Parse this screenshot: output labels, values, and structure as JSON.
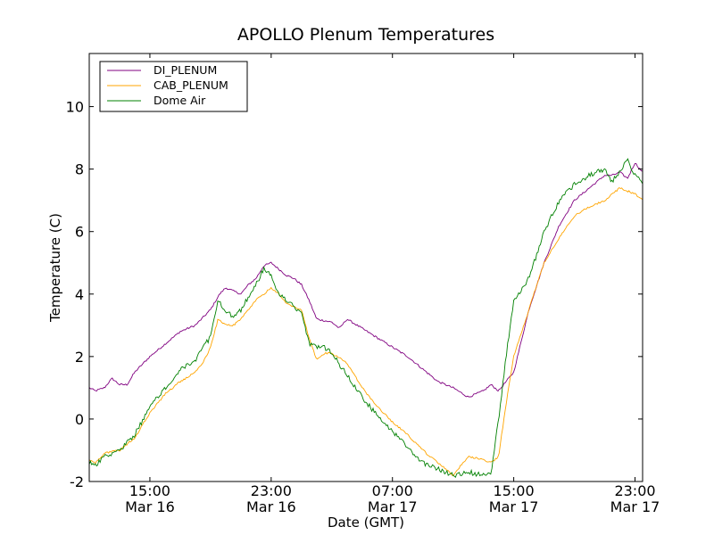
{
  "chart_data": {
    "type": "line",
    "title": "APOLLO Plenum Temperatures",
    "xlabel": "Date (GMT)",
    "ylabel": "Temperature (C)",
    "x_unit": "hours since Mar 16 11:00 GMT",
    "xlim": [
      0,
      36.5
    ],
    "ylim": [
      -2,
      11.7
    ],
    "y_ticks": [
      -2,
      0,
      2,
      4,
      6,
      8,
      10
    ],
    "x_ticks": [
      {
        "value": 4,
        "line1": "15:00",
        "line2": "Mar 16"
      },
      {
        "value": 12,
        "line1": "23:00",
        "line2": "Mar 16"
      },
      {
        "value": 20,
        "line1": "07:00",
        "line2": "Mar 17"
      },
      {
        "value": 28,
        "line1": "15:00",
        "line2": "Mar 17"
      },
      {
        "value": 36,
        "line1": "23:00",
        "line2": "Mar 17"
      }
    ],
    "grid": false,
    "legend_position": "top-left",
    "series": [
      {
        "name": "DI_PLENUM",
        "color": "#800080",
        "noise": 0.03,
        "x": [
          0,
          0.4,
          1,
          1.5,
          2,
          2.5,
          3,
          4,
          5,
          6,
          7,
          8,
          8.6,
          9,
          9.5,
          10,
          10.5,
          11,
          11.5,
          12,
          12.5,
          13,
          13.5,
          14,
          14.5,
          15,
          16,
          16.5,
          17,
          18,
          19,
          20,
          21,
          22,
          23,
          24,
          25,
          25.5,
          26,
          26.5,
          27,
          28,
          29,
          30,
          31,
          32,
          33,
          34,
          34.5,
          35,
          35.5,
          36,
          36.5
        ],
        "y": [
          1.0,
          0.9,
          1.0,
          1.3,
          1.1,
          1.1,
          1.5,
          2.0,
          2.4,
          2.8,
          3.0,
          3.5,
          4.0,
          4.2,
          4.1,
          4.0,
          4.3,
          4.5,
          4.9,
          5.0,
          4.8,
          4.6,
          4.5,
          4.3,
          3.8,
          3.2,
          3.1,
          2.9,
          3.2,
          2.9,
          2.6,
          2.3,
          2.0,
          1.6,
          1.2,
          1.0,
          0.7,
          0.8,
          0.9,
          1.1,
          0.9,
          1.5,
          3.5,
          5.0,
          6.2,
          7.0,
          7.4,
          7.8,
          7.8,
          7.9,
          7.7,
          8.2,
          7.9
        ]
      },
      {
        "name": "CAB_PLENUM",
        "color": "#FFA500",
        "noise": 0.03,
        "x": [
          0,
          0.4,
          1,
          2,
          3,
          4,
          5,
          6,
          7,
          7.5,
          8,
          8.5,
          9,
          9.5,
          10,
          11,
          12,
          12.5,
          13,
          13.5,
          14,
          14.5,
          15,
          15.5,
          16,
          17,
          18,
          19,
          20,
          21,
          22,
          23,
          23.5,
          24,
          25,
          26,
          26.5,
          27,
          27.5,
          28,
          29,
          30,
          31,
          32,
          33,
          33.5,
          34,
          34.5,
          35,
          35.5,
          36,
          36.5
        ],
        "y": [
          -1.3,
          -1.4,
          -1.1,
          -1.0,
          -0.6,
          0.2,
          0.8,
          1.2,
          1.5,
          1.8,
          2.3,
          3.2,
          3.0,
          3.0,
          3.2,
          3.8,
          4.2,
          4.0,
          3.7,
          3.6,
          3.5,
          2.6,
          1.9,
          2.1,
          2.1,
          1.8,
          1.0,
          0.4,
          -0.1,
          -0.5,
          -1.0,
          -1.4,
          -1.6,
          -1.8,
          -1.2,
          -1.3,
          -1.4,
          -1.2,
          0.5,
          2.0,
          3.5,
          5.0,
          5.8,
          6.5,
          6.8,
          6.9,
          7.0,
          7.2,
          7.4,
          7.3,
          7.2,
          7.0
        ]
      },
      {
        "name": "Dome Air",
        "color": "#008000",
        "noise": 0.08,
        "x": [
          0,
          0.4,
          1,
          2,
          3,
          4,
          5,
          6,
          7,
          7.5,
          8,
          8.5,
          9,
          9.5,
          10,
          11,
          11.5,
          12,
          12.5,
          13,
          13.5,
          14,
          14.5,
          15,
          15.5,
          16,
          17,
          18,
          19,
          20,
          21,
          22,
          23,
          23.5,
          24,
          25,
          26,
          26.5,
          27,
          27.5,
          28,
          29,
          30,
          31,
          32,
          33,
          34,
          34.5,
          35,
          35.5,
          36,
          36.5
        ],
        "y": [
          -1.4,
          -1.5,
          -1.2,
          -1.0,
          -0.5,
          0.4,
          1.0,
          1.6,
          1.9,
          2.3,
          2.6,
          3.8,
          3.4,
          3.3,
          3.5,
          4.3,
          4.8,
          4.6,
          4.0,
          3.8,
          3.6,
          3.4,
          2.4,
          2.3,
          2.3,
          2.1,
          1.4,
          0.7,
          0.1,
          -0.4,
          -0.9,
          -1.4,
          -1.6,
          -1.7,
          -1.8,
          -1.7,
          -1.8,
          -1.8,
          0.0,
          2.0,
          3.8,
          4.5,
          6.0,
          7.0,
          7.5,
          7.8,
          8.0,
          7.6,
          7.9,
          8.3,
          7.8,
          7.6
        ]
      }
    ]
  }
}
